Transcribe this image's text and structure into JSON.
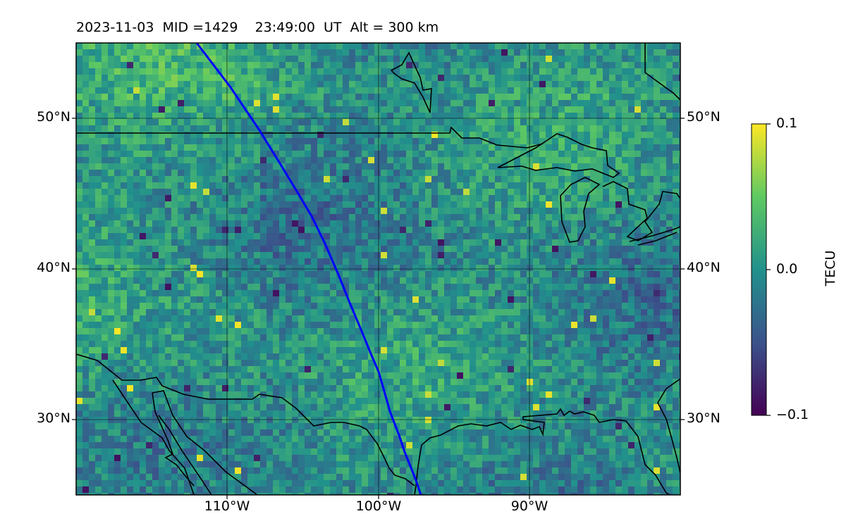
{
  "title": "2023-11-03  MID =1429    23:49:00  UT  Alt = 300 km",
  "map": {
    "extent": {
      "lon": [
        -120,
        -80
      ],
      "lat": [
        25,
        55
      ]
    },
    "lat_ticks": [
      {
        "value": 50,
        "label": "50°N"
      },
      {
        "value": 40,
        "label": "40°N"
      },
      {
        "value": 30,
        "label": "30°N"
      }
    ],
    "lon_ticks": [
      {
        "value": -110,
        "label": "110°W"
      },
      {
        "value": -100,
        "label": "100°W"
      },
      {
        "value": -90,
        "label": "90°W"
      }
    ],
    "gridlines": true,
    "track_color": "#0000ff",
    "coastline_color": "#000000",
    "colormap": "viridis"
  },
  "colorbar": {
    "label": "TECU",
    "ticks": [
      {
        "value": 0.1,
        "label": "0.1"
      },
      {
        "value": 0.0,
        "label": "0.0"
      },
      {
        "value": -0.1,
        "label": "−0.1"
      }
    ],
    "range": [
      -0.1,
      0.1
    ]
  }
}
